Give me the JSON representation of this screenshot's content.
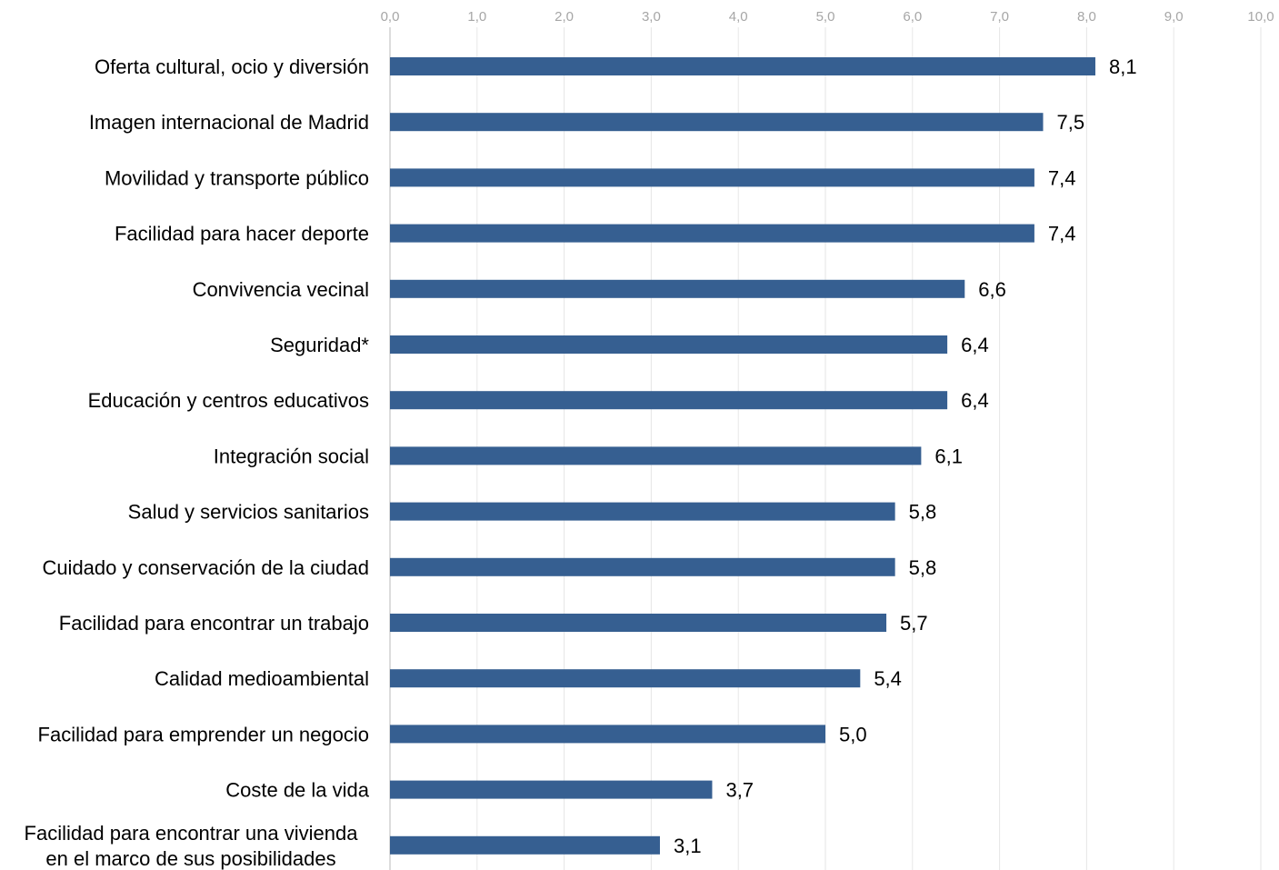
{
  "chart_data": {
    "type": "bar",
    "orientation": "horizontal",
    "title": "",
    "xlabel": "",
    "ylabel": "",
    "xlim": [
      0,
      10
    ],
    "x_ticks": [
      "0,0",
      "1,0",
      "2,0",
      "3,0",
      "4,0",
      "5,0",
      "6,0",
      "7,0",
      "8,0",
      "9,0",
      "10,0"
    ],
    "x_tick_values": [
      0,
      1,
      2,
      3,
      4,
      5,
      6,
      7,
      8,
      9,
      10
    ],
    "x_axis_position": "top",
    "grid": true,
    "bar_color": "#365f91",
    "categories": [
      [
        "Oferta cultural, ocio y diversión"
      ],
      [
        "Imagen internacional de Madrid"
      ],
      [
        "Movilidad y transporte público"
      ],
      [
        "Facilidad para hacer deporte"
      ],
      [
        "Convivencia vecinal"
      ],
      [
        "Seguridad*"
      ],
      [
        "Educación y centros educativos"
      ],
      [
        "Integración social"
      ],
      [
        "Salud y servicios sanitarios"
      ],
      [
        "Cuidado y conservación de la ciudad"
      ],
      [
        "Facilidad para encontrar un trabajo"
      ],
      [
        "Calidad medioambiental"
      ],
      [
        "Facilidad para emprender un negocio"
      ],
      [
        "Coste de la vida"
      ],
      [
        "Facilidad para encontrar una vivienda",
        "en el marco de sus posibilidades"
      ]
    ],
    "values": [
      8.1,
      7.5,
      7.4,
      7.4,
      6.6,
      6.4,
      6.4,
      6.1,
      5.8,
      5.8,
      5.7,
      5.4,
      5.0,
      3.7,
      3.1
    ],
    "value_labels": [
      "8,1",
      "7,5",
      "7,4",
      "7,4",
      "6,6",
      "6,4",
      "6,4",
      "6,1",
      "5,8",
      "5,8",
      "5,7",
      "5,4",
      "5,0",
      "3,7",
      "3,1"
    ]
  }
}
